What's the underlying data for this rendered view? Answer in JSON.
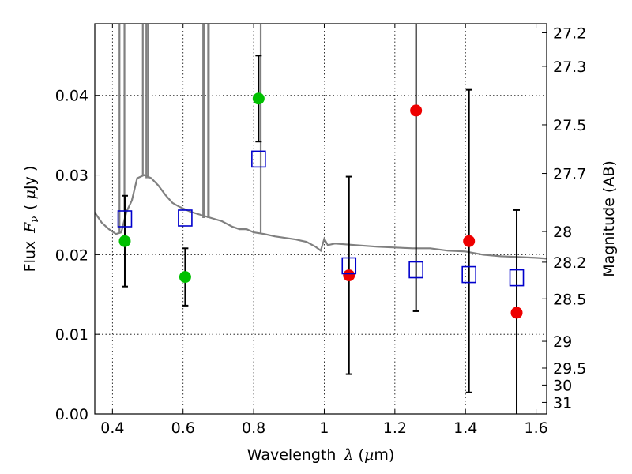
{
  "chart_data": {
    "type": "scatter",
    "title": "",
    "xlabel": {
      "prefix": "Wavelength",
      "symbol": "λ",
      "unit_open": "(",
      "unit_mu": "μ",
      "unit_rest": "m)"
    },
    "ylabel": {
      "prefix": "Flux",
      "symbol": "F",
      "subscript": "ν",
      "unit_open": "(",
      "unit_mu": "μ",
      "unit_rest": "Jy )"
    },
    "ylabel_right": "Magnitude (AB)",
    "xlim": [
      0.35,
      1.63
    ],
    "ylim": [
      0.0,
      0.049
    ],
    "grid": true,
    "x_ticks": [
      {
        "value": 0.4,
        "label": "0.4"
      },
      {
        "value": 0.6,
        "label": "0.6"
      },
      {
        "value": 0.8,
        "label": "0.8"
      },
      {
        "value": 1.0,
        "label": "1"
      },
      {
        "value": 1.2,
        "label": "1.2"
      },
      {
        "value": 1.4,
        "label": "1.4"
      },
      {
        "value": 1.6,
        "label": "1.6"
      }
    ],
    "y_ticks": [
      {
        "value": 0.0,
        "label": "0.00"
      },
      {
        "value": 0.01,
        "label": "0.01"
      },
      {
        "value": 0.02,
        "label": "0.02"
      },
      {
        "value": 0.03,
        "label": "0.03"
      },
      {
        "value": 0.04,
        "label": "0.04"
      }
    ],
    "right_ticks": [
      {
        "mag": 27.2,
        "label": "27.2"
      },
      {
        "mag": 27.3,
        "label": "27.3"
      },
      {
        "mag": 27.5,
        "label": "27.5"
      },
      {
        "mag": 27.7,
        "label": "27.7"
      },
      {
        "mag": 28.0,
        "label": "28"
      },
      {
        "mag": 28.2,
        "label": "28.2"
      },
      {
        "mag": 28.5,
        "label": "28.5"
      },
      {
        "mag": 29.0,
        "label": "29"
      },
      {
        "mag": 29.5,
        "label": "29.5"
      },
      {
        "mag": 30.0,
        "label": "30"
      },
      {
        "mag": 31.0,
        "label": "31"
      }
    ],
    "series": [
      {
        "color": "#00c000",
        "marker": "filled-circle",
        "points": [
          {
            "x": 0.435,
            "y": 0.0217,
            "err": 0.0057
          },
          {
            "x": 0.606,
            "y": 0.0172,
            "err": 0.0036
          },
          {
            "x": 0.814,
            "y": 0.0396,
            "err": 0.0054
          }
        ]
      },
      {
        "color": "#ee0000",
        "marker": "filled-circle",
        "points": [
          {
            "x": 1.07,
            "y": 0.0174,
            "err": 0.0124
          },
          {
            "x": 1.26,
            "y": 0.0381,
            "err": 0.0252
          },
          {
            "x": 1.41,
            "y": 0.0217,
            "err": 0.019
          },
          {
            "x": 1.545,
            "y": 0.0127,
            "err": 0.0129
          }
        ]
      },
      {
        "color": "#0000cc",
        "marker": "open-square",
        "points": [
          {
            "x": 0.435,
            "y": 0.0245
          },
          {
            "x": 0.606,
            "y": 0.0246
          },
          {
            "x": 0.814,
            "y": 0.032
          },
          {
            "x": 1.07,
            "y": 0.0186
          },
          {
            "x": 1.26,
            "y": 0.0181
          },
          {
            "x": 1.41,
            "y": 0.0175
          },
          {
            "x": 1.545,
            "y": 0.0171
          }
        ]
      }
    ],
    "model": {
      "color": "#808080",
      "points": [
        [
          0.35,
          0.0253
        ],
        [
          0.37,
          0.024
        ],
        [
          0.39,
          0.0232
        ],
        [
          0.41,
          0.0226
        ],
        [
          0.425,
          0.0228
        ],
        [
          0.44,
          0.0254
        ],
        [
          0.455,
          0.0268
        ],
        [
          0.47,
          0.0296
        ],
        [
          0.49,
          0.03
        ],
        [
          0.51,
          0.0296
        ],
        [
          0.53,
          0.0287
        ],
        [
          0.55,
          0.0275
        ],
        [
          0.57,
          0.0265
        ],
        [
          0.59,
          0.026
        ],
        [
          0.62,
          0.0254
        ],
        [
          0.65,
          0.025
        ],
        [
          0.68,
          0.0246
        ],
        [
          0.71,
          0.0242
        ],
        [
          0.74,
          0.0235
        ],
        [
          0.76,
          0.0232
        ],
        [
          0.78,
          0.0232
        ],
        [
          0.8,
          0.0228
        ],
        [
          0.83,
          0.0226
        ],
        [
          0.86,
          0.0223
        ],
        [
          0.89,
          0.0221
        ],
        [
          0.92,
          0.0219
        ],
        [
          0.95,
          0.0216
        ],
        [
          0.975,
          0.021
        ],
        [
          0.99,
          0.0205
        ],
        [
          1.0,
          0.022
        ],
        [
          1.01,
          0.0212
        ],
        [
          1.03,
          0.0214
        ],
        [
          1.06,
          0.0213
        ],
        [
          1.09,
          0.0212
        ],
        [
          1.12,
          0.0211
        ],
        [
          1.15,
          0.021
        ],
        [
          1.2,
          0.0209
        ],
        [
          1.25,
          0.0208
        ],
        [
          1.3,
          0.0208
        ],
        [
          1.35,
          0.0205
        ],
        [
          1.4,
          0.0204
        ],
        [
          1.45,
          0.02
        ],
        [
          1.5,
          0.0198
        ],
        [
          1.55,
          0.0197
        ],
        [
          1.6,
          0.0196
        ],
        [
          1.63,
          0.0195
        ]
      ],
      "emission_lines": [
        {
          "x": 0.42,
          "y": 0.06
        },
        {
          "x": 0.434,
          "y": 0.06
        },
        {
          "x": 0.486,
          "y": 0.06
        },
        {
          "x": 0.496,
          "y": 0.06
        },
        {
          "x": 0.501,
          "y": 0.06
        },
        {
          "x": 0.657,
          "y": 0.06
        },
        {
          "x": 0.659,
          "y": 0.06
        },
        {
          "x": 0.671,
          "y": 0.06
        },
        {
          "x": 0.673,
          "y": 0.06
        },
        {
          "x": 0.82,
          "y": 0.06
        }
      ]
    }
  }
}
